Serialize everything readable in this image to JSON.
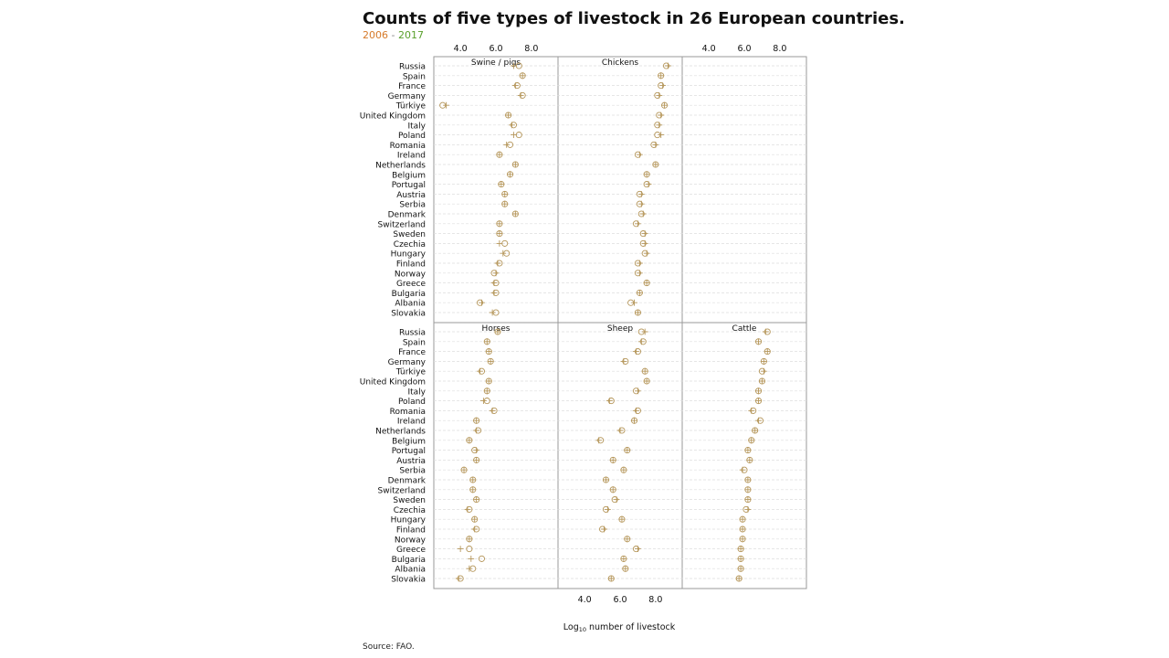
{
  "title": "Counts of five types of livestock in 26 European countries.",
  "legend": {
    "year_a": "2006",
    "separator": "-",
    "year_b": "2017",
    "color_a": "#d67a2a",
    "color_b": "#5aa02c"
  },
  "source": "Source: FAO.",
  "chart_data": {
    "type": "scatter",
    "title": "Counts of five types of livestock in 26 European countries.",
    "xlabel_prefix": "Log",
    "xlabel_sub": "10",
    "xlabel_suffix": " number of livestock",
    "xlim": [
      2.5,
      9.5
    ],
    "xticks": [
      4,
      6,
      8
    ],
    "xtick_labels": [
      "4.0",
      "6.0",
      "8.0"
    ],
    "grid": true,
    "point_color": "#b5965a",
    "marker_2006": "circle",
    "marker_2017": "plus",
    "countries": [
      "Russia",
      "Spain",
      "France",
      "Germany",
      "Türkiye",
      "United Kingdom",
      "Italy",
      "Poland",
      "Romania",
      "Ireland",
      "Netherlands",
      "Belgium",
      "Portugal",
      "Austria",
      "Serbia",
      "Denmark",
      "Switzerland",
      "Sweden",
      "Czechia",
      "Hungary",
      "Finland",
      "Norway",
      "Greece",
      "Bulgaria",
      "Albania",
      "Slovakia"
    ],
    "panels": [
      {
        "name": "Swine / pigs",
        "y2006": [
          7.3,
          7.5,
          7.2,
          7.5,
          3.0,
          6.7,
          7.0,
          7.3,
          6.8,
          6.2,
          7.1,
          6.8,
          6.3,
          6.5,
          6.5,
          7.1,
          6.2,
          6.2,
          6.5,
          6.6,
          6.2,
          5.9,
          6.0,
          6.0,
          5.1,
          6.0
        ],
        "y2017": [
          7.0,
          7.5,
          7.1,
          7.4,
          3.2,
          6.7,
          6.9,
          7.0,
          6.6,
          6.2,
          7.1,
          6.8,
          6.3,
          6.5,
          6.5,
          7.1,
          6.2,
          6.2,
          6.2,
          6.4,
          6.1,
          6.0,
          5.9,
          5.9,
          5.2,
          5.8
        ]
      },
      {
        "name": "Chickens",
        "y2006": [
          8.6,
          8.3,
          8.3,
          8.1,
          8.5,
          8.2,
          8.1,
          8.1,
          7.9,
          7.0,
          8.0,
          7.5,
          7.5,
          7.1,
          7.1,
          7.2,
          6.9,
          7.3,
          7.3,
          7.4,
          7.0,
          7.0,
          7.5,
          7.1,
          6.6,
          7.0
        ],
        "y2017": [
          8.7,
          8.3,
          8.4,
          8.2,
          8.5,
          8.3,
          8.2,
          8.3,
          8.0,
          7.1,
          8.0,
          7.5,
          7.6,
          7.2,
          7.2,
          7.3,
          7.0,
          7.4,
          7.4,
          7.5,
          7.1,
          7.1,
          7.5,
          7.1,
          6.8,
          7.0
        ]
      },
      {
        "name": "Horses",
        "y2006": [
          6.1,
          5.5,
          5.6,
          5.7,
          5.2,
          5.6,
          5.5,
          5.5,
          5.9,
          4.9,
          5.0,
          4.5,
          4.8,
          4.9,
          4.2,
          4.7,
          4.7,
          4.9,
          4.5,
          4.8,
          4.9,
          4.5,
          4.5,
          5.2,
          4.7,
          4.0
        ],
        "y2017": [
          6.1,
          5.5,
          5.6,
          5.7,
          5.1,
          5.6,
          5.5,
          5.3,
          5.8,
          4.9,
          4.9,
          4.5,
          4.9,
          4.9,
          4.2,
          4.7,
          4.7,
          4.9,
          4.4,
          4.8,
          4.8,
          4.5,
          4.0,
          4.6,
          4.5,
          3.9
        ]
      },
      {
        "name": "Sheep",
        "y2006": [
          7.2,
          7.3,
          7.0,
          6.3,
          7.4,
          7.5,
          6.9,
          5.5,
          7.0,
          6.8,
          6.1,
          4.9,
          6.4,
          5.6,
          6.2,
          5.2,
          5.6,
          5.7,
          5.2,
          6.1,
          5.0,
          6.4,
          6.9,
          6.2,
          6.3,
          5.5
        ],
        "y2017": [
          7.4,
          7.2,
          6.9,
          6.2,
          7.4,
          7.5,
          7.0,
          5.4,
          6.9,
          6.8,
          6.0,
          4.8,
          6.4,
          5.6,
          6.2,
          5.2,
          5.6,
          5.8,
          5.3,
          6.1,
          5.1,
          6.4,
          7.0,
          6.2,
          6.3,
          5.5
        ],
        "show_x_axis": true
      },
      {
        "name": "Cattle",
        "y2006": [
          7.3,
          6.8,
          7.3,
          7.1,
          7.0,
          7.0,
          6.8,
          6.8,
          6.5,
          6.9,
          6.6,
          6.4,
          6.2,
          6.3,
          6.0,
          6.2,
          6.2,
          6.2,
          6.1,
          5.9,
          5.9,
          5.9,
          5.8,
          5.8,
          5.8,
          5.7
        ],
        "y2017": [
          7.2,
          6.8,
          7.3,
          7.1,
          7.1,
          7.0,
          6.8,
          6.8,
          6.4,
          6.8,
          6.6,
          6.4,
          6.2,
          6.3,
          5.9,
          6.2,
          6.2,
          6.2,
          6.2,
          5.9,
          5.9,
          5.9,
          5.8,
          5.8,
          5.8,
          5.7
        ]
      }
    ]
  }
}
